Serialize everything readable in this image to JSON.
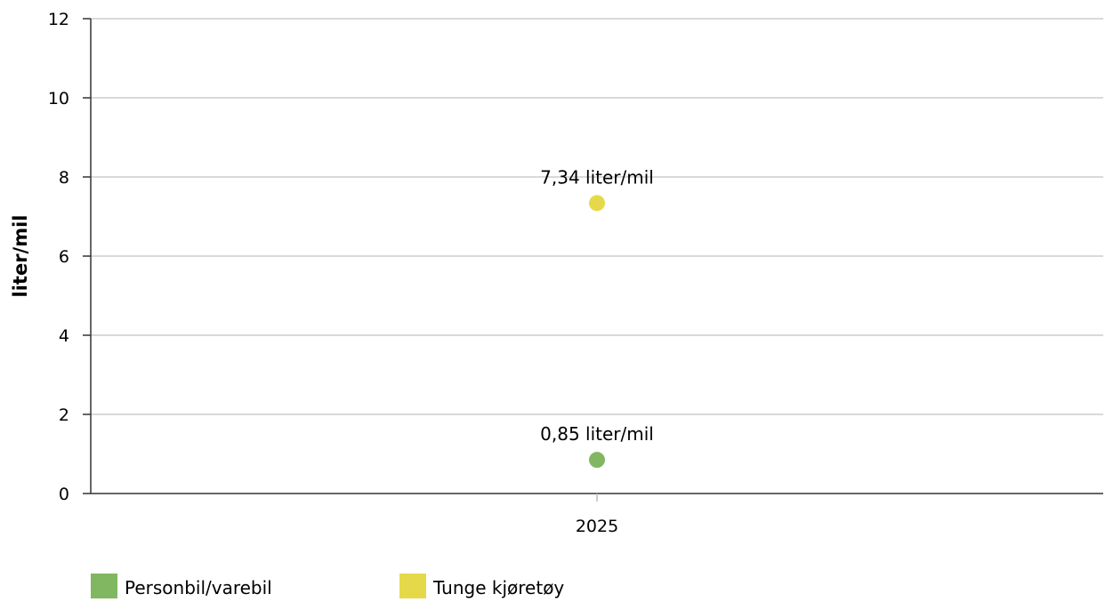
{
  "chart_data": {
    "type": "scatter",
    "title": "",
    "xlabel": "",
    "ylabel": "liter/mil",
    "categories": [
      "2025"
    ],
    "ylim": [
      0,
      12
    ],
    "yticks": [
      0,
      2,
      4,
      6,
      8,
      10,
      12
    ],
    "grid": true,
    "legend_position": "bottom-left",
    "series": [
      {
        "name": "Personbil/varebil",
        "color": "#82b761",
        "values": [
          0.85
        ],
        "labels": [
          "0,85 liter/mil"
        ]
      },
      {
        "name": "Tunge kjøretøy",
        "color": "#e5d94a",
        "values": [
          7.34
        ],
        "labels": [
          "7,34 liter/mil"
        ]
      }
    ]
  }
}
